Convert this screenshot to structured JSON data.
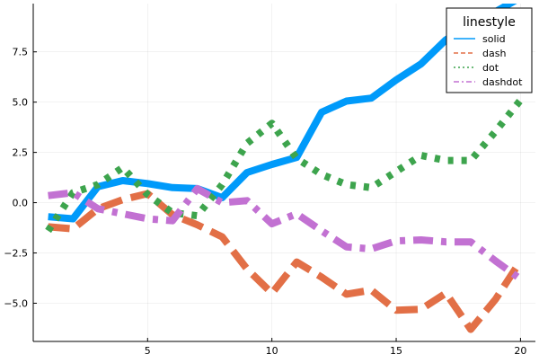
{
  "chart_data": {
    "type": "line",
    "title": "",
    "xlabel": "",
    "ylabel": "",
    "xlim": [
      0.4,
      20.6
    ],
    "ylim": [
      -6.9,
      9.9
    ],
    "grid": true,
    "legend_position": "top-right",
    "legend_title": "linestyle",
    "x_ticks": [
      5,
      10,
      15,
      20
    ],
    "x_tick_labels": [
      "5",
      "10",
      "15",
      "20"
    ],
    "y_ticks": [
      -5,
      -2.5,
      0,
      2.5,
      5,
      7.5
    ],
    "y_tick_labels": [
      "−5.0",
      "−2.5",
      "0.0",
      "2.5",
      "5.0",
      "7.5"
    ],
    "x": [
      1,
      2,
      3,
      4,
      5,
      6,
      7,
      8,
      9,
      10,
      11,
      12,
      13,
      14,
      15,
      16,
      17,
      18,
      19,
      20
    ],
    "series": [
      {
        "name": "solid",
        "style": "solid",
        "color": "#009AFA",
        "values": [
          -0.7,
          -0.8,
          0.8,
          1.1,
          0.95,
          0.75,
          0.7,
          0.25,
          1.5,
          1.9,
          2.25,
          4.5,
          5.05,
          5.2,
          6.1,
          6.9,
          8.1,
          8.9,
          9.5,
          10.2
        ]
      },
      {
        "name": "dash",
        "style": "dash",
        "color": "#E26F46",
        "values": [
          -1.2,
          -1.3,
          -0.3,
          0.15,
          0.45,
          -0.6,
          -1.1,
          -1.7,
          -3.3,
          -4.5,
          -2.95,
          -3.7,
          -4.55,
          -4.35,
          -5.35,
          -5.3,
          -4.5,
          -6.3,
          -4.8,
          -2.9
        ]
      },
      {
        "name": "dot",
        "style": "dot",
        "color": "#3DA44D",
        "values": [
          -1.4,
          0.5,
          0.9,
          1.75,
          0.4,
          -0.5,
          -0.65,
          0.9,
          2.95,
          3.95,
          2.2,
          1.4,
          0.9,
          0.75,
          1.55,
          2.35,
          2.1,
          2.1,
          3.55,
          5.1
        ]
      },
      {
        "name": "dashdot",
        "style": "dashdot",
        "color": "#C271D2",
        "values": [
          0.35,
          0.5,
          -0.3,
          -0.55,
          -0.8,
          -0.9,
          0.7,
          0.0,
          0.1,
          -1.05,
          -0.55,
          -1.4,
          -2.2,
          -2.3,
          -1.9,
          -1.85,
          -1.95,
          -1.95,
          -2.9,
          -3.8
        ]
      }
    ]
  }
}
